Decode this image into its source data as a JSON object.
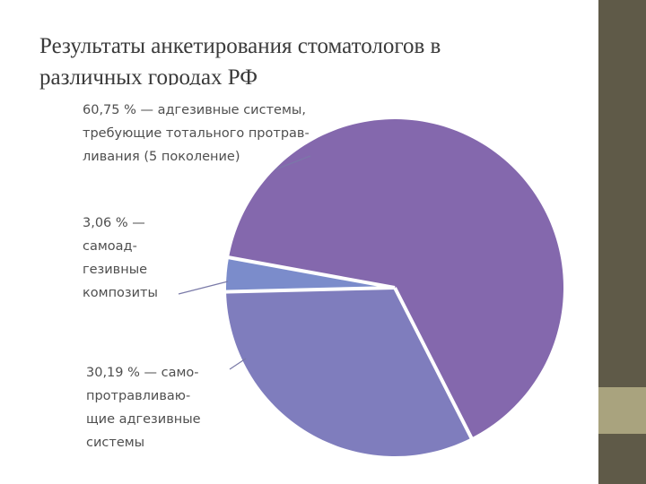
{
  "slide": {
    "title_line1": "Результаты анкетирования стоматологов в",
    "title_line2": "различных городах РФ"
  },
  "colors": {
    "sidebar": "#5f5a48",
    "sidebar_accent": "#a9a37e",
    "slice_5gen": "#8468ad",
    "slice_self_etch": "#7f7dbd",
    "slice_self_adhesive": "#7b8ccb"
  },
  "chart_data": {
    "type": "pie",
    "title": "",
    "slices": [
      {
        "value": 60.75,
        "color": "#8468ad",
        "label_lines": [
          "60,75 % — адгезивные системы,",
          "требующие тотального протрав-",
          "ливания (5 поколение)"
        ]
      },
      {
        "value": 30.19,
        "color": "#7f7dbd",
        "label_lines": [
          "30,19 % — само-",
          "протравливаю-",
          "щие адгезивные",
          "системы"
        ]
      },
      {
        "value": 3.06,
        "color": "#7b8ccb",
        "label_lines": [
          "3,06 % —",
          "самоад-",
          "гезивные",
          "композиты"
        ]
      }
    ]
  }
}
